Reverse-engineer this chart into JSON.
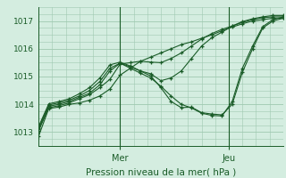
{
  "bg_color": "#d4ede0",
  "grid_color": "#9fc9b0",
  "line_color": "#1a5c28",
  "marker_color": "#1a5c28",
  "xlabel": "Pression niveau de la mer( hPa )",
  "xlabel_color": "#1a5c28",
  "tick_color": "#1a5c28",
  "yticks": [
    1013,
    1014,
    1015,
    1016,
    1017
  ],
  "ylim": [
    1012.5,
    1017.5
  ],
  "xlim": [
    0,
    72
  ],
  "x_mer": 24,
  "x_jeu": 56,
  "series": [
    [
      0,
      1012.85,
      3,
      1013.85,
      6,
      1013.9,
      9,
      1014.0,
      12,
      1014.05,
      15,
      1014.15,
      18,
      1014.3,
      21,
      1014.55,
      24,
      1015.05,
      27,
      1015.3,
      30,
      1015.55,
      33,
      1015.7,
      36,
      1015.85,
      39,
      1016.0,
      42,
      1016.15,
      45,
      1016.25,
      48,
      1016.38,
      51,
      1016.5,
      54,
      1016.65,
      57,
      1016.78,
      60,
      1016.9,
      63,
      1017.0,
      66,
      1017.05,
      69,
      1017.1,
      72,
      1017.1
    ],
    [
      0,
      1013.05,
      3,
      1013.88,
      6,
      1013.95,
      9,
      1014.05,
      12,
      1014.2,
      15,
      1014.35,
      18,
      1014.6,
      21,
      1014.9,
      24,
      1015.45,
      27,
      1015.5,
      30,
      1015.55,
      33,
      1015.52,
      36,
      1015.5,
      39,
      1015.65,
      42,
      1015.85,
      45,
      1016.1,
      48,
      1016.35,
      51,
      1016.55,
      54,
      1016.7,
      57,
      1016.82,
      60,
      1016.95,
      63,
      1017.05,
      66,
      1017.12,
      69,
      1017.15,
      72,
      1017.15
    ],
    [
      0,
      1013.1,
      3,
      1013.93,
      6,
      1014.0,
      9,
      1014.1,
      12,
      1014.25,
      15,
      1014.4,
      18,
      1014.7,
      21,
      1015.2,
      24,
      1015.48,
      27,
      1015.35,
      30,
      1015.2,
      33,
      1015.1,
      36,
      1014.85,
      39,
      1014.95,
      42,
      1015.2,
      45,
      1015.65,
      48,
      1016.1,
      51,
      1016.4,
      54,
      1016.6,
      57,
      1016.82,
      60,
      1016.98,
      63,
      1017.08,
      66,
      1017.15,
      69,
      1017.2,
      72,
      1017.2
    ],
    [
      0,
      1013.15,
      3,
      1013.98,
      6,
      1014.05,
      9,
      1014.15,
      12,
      1014.3,
      15,
      1014.5,
      18,
      1014.82,
      21,
      1015.3,
      24,
      1015.48,
      27,
      1015.3,
      30,
      1015.12,
      33,
      1014.95,
      36,
      1014.65,
      39,
      1014.3,
      42,
      1014.0,
      45,
      1013.87,
      48,
      1013.68,
      51,
      1013.6,
      54,
      1013.58,
      57,
      1014.1,
      60,
      1015.3,
      63,
      1016.1,
      66,
      1016.8,
      69,
      1017.05,
      72,
      1017.15
    ],
    [
      0,
      1013.2,
      3,
      1014.02,
      6,
      1014.1,
      9,
      1014.2,
      12,
      1014.38,
      15,
      1014.6,
      18,
      1014.95,
      21,
      1015.42,
      24,
      1015.52,
      27,
      1015.38,
      30,
      1015.2,
      33,
      1015.02,
      36,
      1014.6,
      39,
      1014.1,
      42,
      1013.88,
      45,
      1013.9,
      48,
      1013.7,
      51,
      1013.65,
      54,
      1013.62,
      57,
      1014.0,
      60,
      1015.15,
      63,
      1016.0,
      66,
      1016.75,
      69,
      1017.0,
      72,
      1017.1
    ]
  ]
}
